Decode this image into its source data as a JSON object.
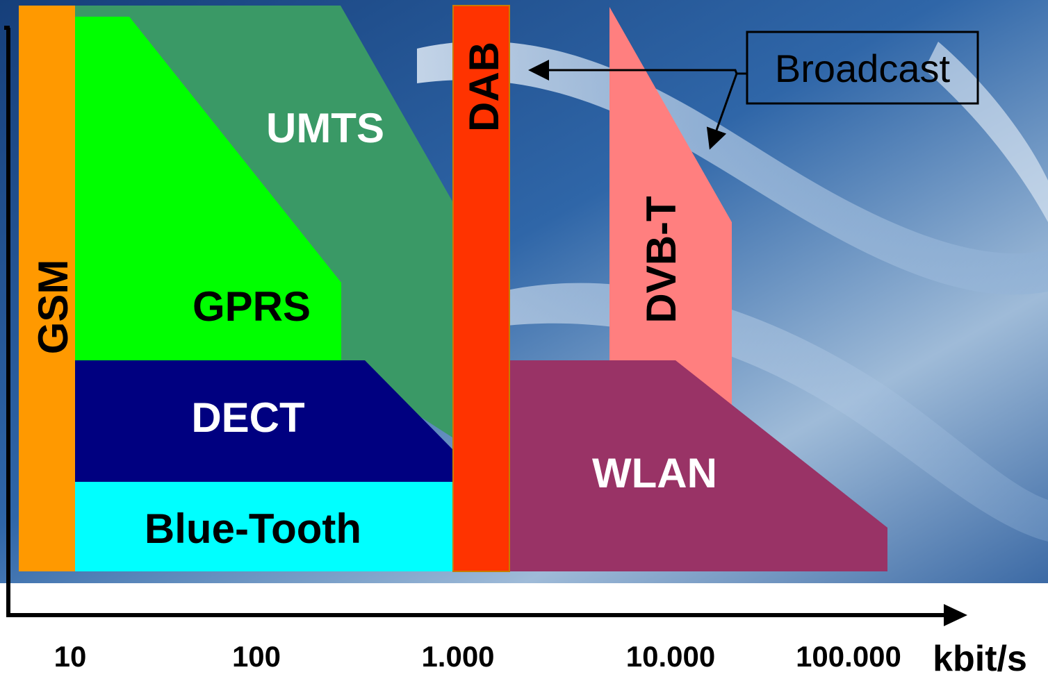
{
  "regions": {
    "gsm": {
      "label": "GSM",
      "color": "#ff9900",
      "text_color": "#000000"
    },
    "gprs": {
      "label": "GPRS",
      "color": "#00ff00",
      "text_color": "#000000"
    },
    "umts": {
      "label": "UMTS",
      "color": "#3a9966",
      "text_color": "#ffffff"
    },
    "dect": {
      "label": "DECT",
      "color": "#000080",
      "text_color": "#ffffff"
    },
    "bluetooth": {
      "label": "Blue-Tooth",
      "color": "#00ffff",
      "text_color": "#000000"
    },
    "dab": {
      "label": "DAB",
      "color": "#ff3300",
      "text_color": "#000000"
    },
    "dvbt": {
      "label": "DVB-T",
      "color": "#ff7f7f",
      "text_color": "#000000"
    },
    "wlan": {
      "label": "WLAN",
      "color": "#993366",
      "text_color": "#ffffff"
    }
  },
  "callout": {
    "label": "Broadcast"
  },
  "x_axis": {
    "ticks": [
      "10",
      "100",
      "1.000",
      "10.000",
      "100.000"
    ],
    "unit": "kbit/s"
  },
  "colors": {
    "background_base": "#1f4f8f",
    "axis": "#000000"
  }
}
